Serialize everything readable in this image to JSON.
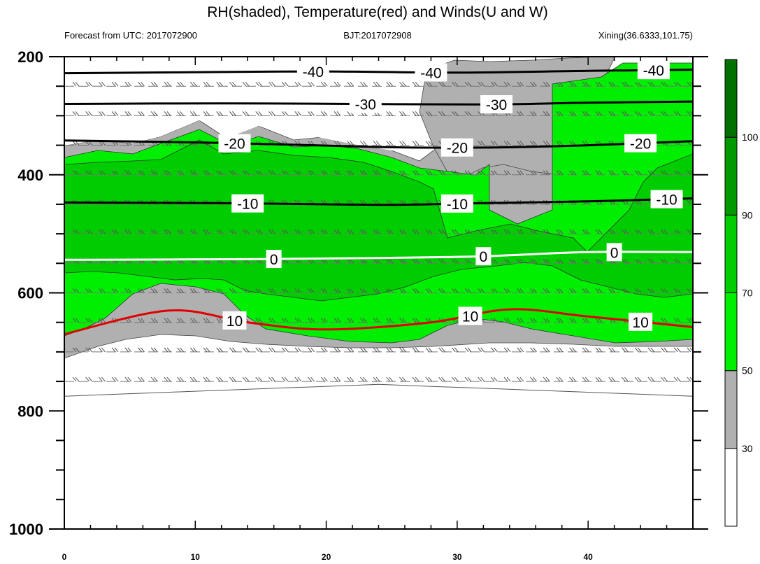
{
  "title": "RH(shaded), Temperature(red) and Winds(U and W)",
  "subtitle_left": "Forecast from UTC: 2017072900",
  "subtitle_center": "BJT:2017072908",
  "subtitle_right": "Xining(36.6333,101.75)",
  "chart_data": {
    "type": "contour",
    "x_ticks": [
      0,
      10,
      20,
      30,
      40
    ],
    "y_ticks": [
      200,
      400,
      600,
      800,
      1000
    ],
    "xlim": [
      0,
      48
    ],
    "ylim": [
      1000,
      200
    ],
    "y_axis_reversed": true,
    "x_minor_step": 2,
    "y_minor_step": 50,
    "surface_pressure_hPa": [
      775,
      773,
      771,
      769,
      767,
      765,
      763,
      761,
      759,
      757,
      755,
      757,
      759,
      761,
      763,
      765,
      767,
      769,
      771,
      773,
      775
    ],
    "rh_colorbar": {
      "levels": [
        30,
        50,
        70,
        90,
        100
      ],
      "colors": [
        "#ffffff",
        "#b0b0b0",
        "#00ee00",
        "#00cd00",
        "#009a00",
        "#007000"
      ]
    },
    "temperature_contours": [
      {
        "value": -40,
        "color": "#000000",
        "labels": [
          {
            "x": 19,
            "text": "-40"
          },
          {
            "x": 28,
            "text": "-40"
          },
          {
            "x": 45,
            "text": "-40"
          }
        ],
        "points": [
          [
            0,
            228
          ],
          [
            12,
            226
          ],
          [
            20,
            225
          ],
          [
            30,
            227
          ],
          [
            40,
            224
          ],
          [
            48,
            222
          ]
        ]
      },
      {
        "value": -30,
        "color": "#000000",
        "labels": [
          {
            "x": 23,
            "text": "-30"
          },
          {
            "x": 33,
            "text": "-30"
          }
        ],
        "points": [
          [
            0,
            280
          ],
          [
            12,
            279
          ],
          [
            22,
            280
          ],
          [
            32,
            281
          ],
          [
            40,
            278
          ],
          [
            48,
            276
          ]
        ]
      },
      {
        "value": -20,
        "color": "#000000",
        "labels": [
          {
            "x": 13,
            "text": "-20"
          },
          {
            "x": 30,
            "text": "-20"
          },
          {
            "x": 44,
            "text": "-20"
          }
        ],
        "points": [
          [
            0,
            342
          ],
          [
            12,
            346
          ],
          [
            24,
            353
          ],
          [
            32,
            354
          ],
          [
            40,
            350
          ],
          [
            48,
            343
          ]
        ]
      },
      {
        "value": -10,
        "color": "#000000",
        "labels": [
          {
            "x": 14,
            "text": "-10"
          },
          {
            "x": 30,
            "text": "-10"
          },
          {
            "x": 46,
            "text": "-10"
          }
        ],
        "points": [
          [
            0,
            447
          ],
          [
            12,
            448
          ],
          [
            24,
            451
          ],
          [
            32,
            448
          ],
          [
            40,
            445
          ],
          [
            48,
            440
          ]
        ]
      },
      {
        "value": 0,
        "color": "#ffffff",
        "labels": [
          {
            "x": 16,
            "text": "0"
          },
          {
            "x": 32,
            "text": "0"
          },
          {
            "x": 42,
            "text": "0"
          }
        ],
        "points": [
          [
            0,
            544
          ],
          [
            14,
            543
          ],
          [
            24,
            541
          ],
          [
            32,
            538
          ],
          [
            40,
            531
          ],
          [
            48,
            531
          ]
        ]
      },
      {
        "value": 10,
        "color": "#e00000",
        "labels": [
          {
            "x": 13,
            "text": "10"
          },
          {
            "x": 31,
            "text": "10"
          },
          {
            "x": 44,
            "text": "10"
          }
        ],
        "points": [
          [
            0,
            670
          ],
          [
            8,
            630
          ],
          [
            14,
            650
          ],
          [
            20,
            662
          ],
          [
            28,
            650
          ],
          [
            34,
            628
          ],
          [
            40,
            640
          ],
          [
            48,
            658
          ]
        ]
      }
    ],
    "wind_barb_levels_hPa": [
      250,
      300,
      350,
      400,
      450,
      500,
      550,
      600,
      650,
      700,
      750
    ]
  }
}
